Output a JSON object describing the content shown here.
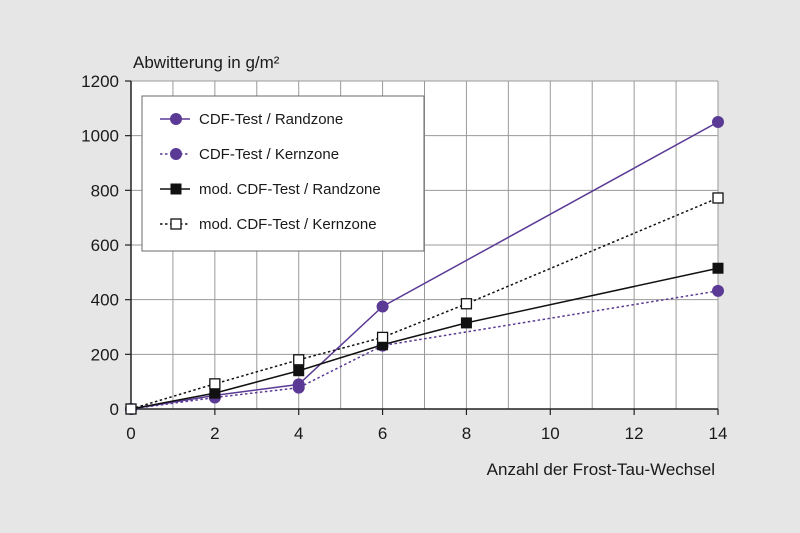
{
  "chart_data": {
    "type": "line",
    "ylabel": "Abwitterung in g/m²",
    "xlabel": "Anzahl der Frost-Tau-Wechsel",
    "xlim": [
      0,
      14
    ],
    "ylim": [
      0,
      1200
    ],
    "x_ticks": [
      0,
      2,
      4,
      6,
      8,
      10,
      12,
      14
    ],
    "y_ticks": [
      0,
      200,
      400,
      600,
      800,
      1000,
      1200
    ],
    "grid": true,
    "legend_position": "top-left",
    "background_color": "#e6e6e6",
    "plot_background_color": "#ffffff",
    "series": [
      {
        "name": "CDF-Test / Randzone",
        "color": "#5b3a95",
        "line_style": "solid",
        "marker": "filled-circle",
        "points": [
          [
            0,
            0
          ],
          [
            2,
            50
          ],
          [
            4,
            90
          ],
          [
            6,
            375
          ],
          [
            14,
            1050
          ]
        ]
      },
      {
        "name": "CDF-Test / Kernzone",
        "color": "#5b3a95",
        "line_style": "dotted",
        "marker": "filled-circle",
        "points": [
          [
            0,
            0
          ],
          [
            2,
            42
          ],
          [
            4,
            78
          ],
          [
            6,
            232
          ],
          [
            14,
            432
          ]
        ]
      },
      {
        "name": "mod. CDF-Test / Randzone",
        "color": "#111111",
        "line_style": "solid",
        "marker": "filled-square",
        "points": [
          [
            0,
            0
          ],
          [
            2,
            58
          ],
          [
            4,
            140
          ],
          [
            6,
            235
          ],
          [
            8,
            315
          ],
          [
            14,
            515
          ]
        ]
      },
      {
        "name": "mod. CDF-Test / Kernzone",
        "color": "#111111",
        "line_style": "dotted",
        "marker": "open-square",
        "points": [
          [
            0,
            0
          ],
          [
            2,
            92
          ],
          [
            4,
            180
          ],
          [
            6,
            262
          ],
          [
            8,
            385
          ],
          [
            14,
            772
          ]
        ]
      }
    ]
  }
}
